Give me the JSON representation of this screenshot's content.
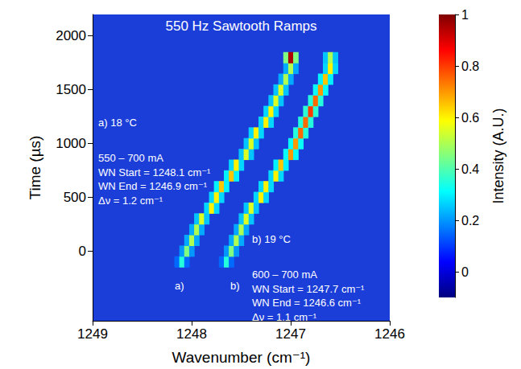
{
  "chart_data": {
    "type": "heatmap",
    "title": "550 Hz Sawtooth Ramps",
    "x_label": "Wavenumber (cm⁻¹)",
    "y_label": "Time (µs)",
    "xlim": [
      1249,
      1246
    ],
    "xticks": [
      1249,
      1248,
      1247,
      1246
    ],
    "ylim": [
      -650,
      2200
    ],
    "yticks": [
      0,
      500,
      1000,
      1500,
      2000
    ],
    "colorbar": {
      "label": "Intensity (A.U.)",
      "range": [
        -0.1,
        1
      ],
      "ticks": [
        0,
        0.2,
        0.4,
        0.6,
        0.8,
        1
      ]
    },
    "annotations": [
      {
        "lines": [
          "a) 18 °C",
          "550 – 700 mA",
          "WN Start = 1248.1 cm⁻¹",
          "WN End = 1246.9 cm⁻¹",
          "Δν = 1.2 cm⁻¹"
        ]
      },
      {
        "lines": [
          "b) 19 °C",
          "600 – 700 mA",
          "WN Start = 1247.7 cm⁻¹",
          "WN End = 1246.6 cm⁻¹",
          "Δν = 1.1 cm⁻¹"
        ]
      },
      {
        "lines": [
          "a)"
        ]
      },
      {
        "lines": [
          "b)"
        ]
      }
    ],
    "cells": [
      [
        1248.15,
        -100,
        0.15
      ],
      [
        1248.1,
        -100,
        0.35
      ],
      [
        1248.05,
        -100,
        0.15
      ],
      [
        1248.1,
        0,
        0.2
      ],
      [
        1248.05,
        0,
        0.45
      ],
      [
        1248.0,
        0,
        0.2
      ],
      [
        1248.05,
        100,
        0.22
      ],
      [
        1248.0,
        100,
        0.5
      ],
      [
        1247.95,
        100,
        0.22
      ],
      [
        1248.0,
        200,
        0.22
      ],
      [
        1247.95,
        200,
        0.5
      ],
      [
        1247.9,
        200,
        0.22
      ],
      [
        1247.95,
        300,
        0.25
      ],
      [
        1247.9,
        300,
        0.55
      ],
      [
        1247.85,
        300,
        0.25
      ],
      [
        1247.85,
        400,
        0.27
      ],
      [
        1247.8,
        400,
        0.6
      ],
      [
        1247.75,
        400,
        0.27
      ],
      [
        1247.8,
        500,
        0.27
      ],
      [
        1247.75,
        500,
        0.6
      ],
      [
        1247.7,
        500,
        0.27
      ],
      [
        1247.75,
        600,
        0.3
      ],
      [
        1247.7,
        600,
        0.65
      ],
      [
        1247.65,
        600,
        0.3
      ],
      [
        1247.65,
        700,
        0.3
      ],
      [
        1247.6,
        700,
        0.65
      ],
      [
        1247.55,
        700,
        0.3
      ],
      [
        1247.6,
        800,
        0.27
      ],
      [
        1247.55,
        800,
        0.6
      ],
      [
        1247.5,
        800,
        0.27
      ],
      [
        1247.5,
        900,
        0.25
      ],
      [
        1247.45,
        900,
        0.55
      ],
      [
        1247.4,
        900,
        0.25
      ],
      [
        1247.45,
        1000,
        0.25
      ],
      [
        1247.4,
        1000,
        0.55
      ],
      [
        1247.35,
        1000,
        0.25
      ],
      [
        1247.4,
        1100,
        0.27
      ],
      [
        1247.35,
        1100,
        0.6
      ],
      [
        1247.3,
        1100,
        0.27
      ],
      [
        1247.3,
        1200,
        0.27
      ],
      [
        1247.25,
        1200,
        0.6
      ],
      [
        1247.2,
        1200,
        0.27
      ],
      [
        1247.25,
        1300,
        0.27
      ],
      [
        1247.2,
        1300,
        0.6
      ],
      [
        1247.15,
        1300,
        0.27
      ],
      [
        1247.2,
        1400,
        0.25
      ],
      [
        1247.15,
        1400,
        0.55
      ],
      [
        1247.1,
        1400,
        0.25
      ],
      [
        1247.15,
        1500,
        0.25
      ],
      [
        1247.1,
        1500,
        0.55
      ],
      [
        1247.05,
        1500,
        0.25
      ],
      [
        1247.1,
        1600,
        0.22
      ],
      [
        1247.05,
        1600,
        0.5
      ],
      [
        1247.0,
        1600,
        0.22
      ],
      [
        1247.05,
        1700,
        0.22
      ],
      [
        1247.0,
        1700,
        0.5
      ],
      [
        1246.95,
        1700,
        0.22
      ],
      [
        1247.7,
        -100,
        0.15
      ],
      [
        1247.65,
        -100,
        0.35
      ],
      [
        1247.6,
        -100,
        0.15
      ],
      [
        1247.65,
        0,
        0.2
      ],
      [
        1247.6,
        0,
        0.45
      ],
      [
        1247.55,
        0,
        0.2
      ],
      [
        1247.6,
        100,
        0.22
      ],
      [
        1247.55,
        100,
        0.5
      ],
      [
        1247.5,
        100,
        0.22
      ],
      [
        1247.55,
        200,
        0.22
      ],
      [
        1247.5,
        200,
        0.5
      ],
      [
        1247.45,
        200,
        0.22
      ],
      [
        1247.5,
        300,
        0.25
      ],
      [
        1247.45,
        300,
        0.55
      ],
      [
        1247.4,
        300,
        0.25
      ],
      [
        1247.45,
        400,
        0.25
      ],
      [
        1247.4,
        400,
        0.55
      ],
      [
        1247.35,
        400,
        0.25
      ],
      [
        1247.35,
        500,
        0.27
      ],
      [
        1247.3,
        500,
        0.6
      ],
      [
        1247.25,
        500,
        0.27
      ],
      [
        1247.3,
        600,
        0.27
      ],
      [
        1247.25,
        600,
        0.6
      ],
      [
        1247.2,
        600,
        0.27
      ],
      [
        1247.2,
        700,
        0.27
      ],
      [
        1247.15,
        700,
        0.6
      ],
      [
        1247.1,
        700,
        0.27
      ],
      [
        1247.15,
        800,
        0.3
      ],
      [
        1247.1,
        800,
        0.65
      ],
      [
        1247.05,
        800,
        0.3
      ],
      [
        1247.05,
        900,
        0.32
      ],
      [
        1247.0,
        900,
        0.7
      ],
      [
        1246.95,
        900,
        0.32
      ],
      [
        1247.0,
        1000,
        0.32
      ],
      [
        1246.95,
        1000,
        0.7
      ],
      [
        1246.9,
        1000,
        0.32
      ],
      [
        1246.95,
        1100,
        0.35
      ],
      [
        1246.9,
        1100,
        0.75
      ],
      [
        1246.85,
        1100,
        0.35
      ],
      [
        1246.9,
        1200,
        0.35
      ],
      [
        1246.85,
        1200,
        0.75
      ],
      [
        1246.8,
        1200,
        0.35
      ],
      [
        1246.85,
        1300,
        0.36
      ],
      [
        1246.8,
        1300,
        0.8
      ],
      [
        1246.75,
        1300,
        0.36
      ],
      [
        1246.8,
        1400,
        0.35
      ],
      [
        1246.75,
        1400,
        0.75
      ],
      [
        1246.7,
        1400,
        0.35
      ],
      [
        1246.75,
        1500,
        0.32
      ],
      [
        1246.7,
        1500,
        0.7
      ],
      [
        1246.65,
        1500,
        0.32
      ],
      [
        1246.7,
        1600,
        0.3
      ],
      [
        1246.65,
        1600,
        0.65
      ],
      [
        1246.6,
        1600,
        0.3
      ],
      [
        1246.65,
        1700,
        0.27
      ],
      [
        1246.6,
        1700,
        0.6
      ],
      [
        1246.55,
        1700,
        0.27
      ],
      [
        1247.05,
        1800,
        0.45
      ],
      [
        1247.0,
        1800,
        0.95
      ],
      [
        1246.95,
        1800,
        0.45
      ],
      [
        1246.65,
        1800,
        0.25
      ],
      [
        1246.6,
        1800,
        0.5
      ],
      [
        1246.55,
        1800,
        0.25
      ]
    ]
  }
}
